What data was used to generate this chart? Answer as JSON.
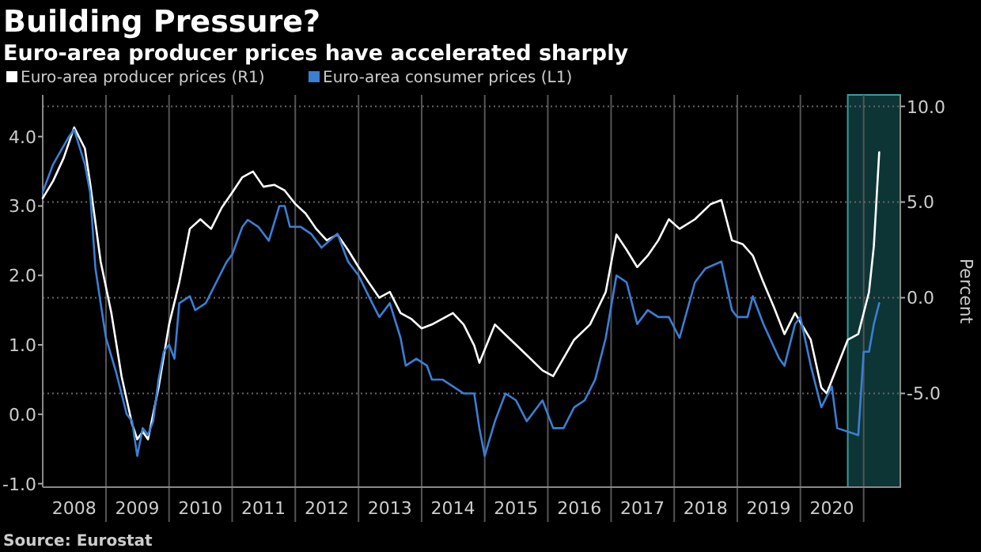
{
  "chart_data": {
    "type": "line",
    "title": "Building Pressure?",
    "subtitle": "Euro-area producer prices have accelerated sharply",
    "y2label": "Percent",
    "annotations": [
      "Source: Eurostat"
    ],
    "legend": "top left",
    "grid": true,
    "xlim": [
      "2008-01",
      "2021-08"
    ],
    "xticks": [
      {
        "value": "2008-07",
        "label": "2008"
      },
      {
        "value": "2009-07",
        "label": "2009"
      },
      {
        "value": "2010-07",
        "label": "2010"
      },
      {
        "value": "2011-07",
        "label": "2011"
      },
      {
        "value": "2012-07",
        "label": "2012"
      },
      {
        "value": "2013-07",
        "label": "2013"
      },
      {
        "value": "2014-07",
        "label": "2014"
      },
      {
        "value": "2015-07",
        "label": "2015"
      },
      {
        "value": "2016-07",
        "label": "2016"
      },
      {
        "value": "2017-07",
        "label": "2017"
      },
      {
        "value": "2018-07",
        "label": "2018"
      },
      {
        "value": "2019-07",
        "label": "2019"
      },
      {
        "value": "2020-07",
        "label": "2020"
      },
      {
        "value": "2009-01",
        "label": null
      },
      {
        "value": "2010-01",
        "label": null
      },
      {
        "value": "2011-01",
        "label": null
      },
      {
        "value": "2012-01",
        "label": null
      },
      {
        "value": "2013-01",
        "label": null
      },
      {
        "value": "2014-01",
        "label": null
      },
      {
        "value": "2015-01",
        "label": null
      },
      {
        "value": "2016-01",
        "label": null
      },
      {
        "value": "2017-01",
        "label": null
      },
      {
        "value": "2018-01",
        "label": null
      },
      {
        "value": "2019-01",
        "label": null
      },
      {
        "value": "2020-01",
        "label": null
      },
      {
        "value": "2021-01",
        "label": null
      }
    ],
    "ylim": [
      -1.05,
      4.6
    ],
    "yticks": [
      {
        "value": -1,
        "label": "-1.0"
      },
      {
        "value": 0,
        "label": "0.0"
      },
      {
        "value": 1,
        "label": "1.0"
      },
      {
        "value": 2,
        "label": "2.0"
      },
      {
        "value": 3,
        "label": "3.0"
      },
      {
        "value": 4,
        "label": "4.0"
      }
    ],
    "y2lim": [
      -9.9,
      10.6
    ],
    "y2ticks": [
      {
        "value": -5,
        "label": "-5.0"
      },
      {
        "value": 0,
        "label": "0.0"
      },
      {
        "value": 5,
        "label": "5.0"
      },
      {
        "value": 10,
        "label": "10.0"
      }
    ],
    "bands": [
      {
        "axis": "x",
        "from": "2020-10",
        "to": "2021-08",
        "color": "#0e3536"
      }
    ],
    "series": [
      {
        "name": "Euro-area producer prices (R1)",
        "color": "#ffffff",
        "axis": "y2",
        "x": [
          "2008-01",
          "2008-03",
          "2008-05",
          "2008-07",
          "2008-09",
          "2008-10",
          "2008-12",
          "2009-02",
          "2009-04",
          "2009-06",
          "2009-07",
          "2009-08",
          "2009-09",
          "2009-11",
          "2010-01",
          "2010-03",
          "2010-05",
          "2010-07",
          "2010-09",
          "2010-11",
          "2011-01",
          "2011-03",
          "2011-05",
          "2011-07",
          "2011-09",
          "2011-11",
          "2012-01",
          "2012-03",
          "2012-05",
          "2012-07",
          "2012-09",
          "2012-11",
          "2013-01",
          "2013-03",
          "2013-05",
          "2013-07",
          "2013-09",
          "2013-11",
          "2014-01",
          "2014-03",
          "2014-05",
          "2014-07",
          "2014-09",
          "2014-11",
          "2014-12",
          "2015-03",
          "2015-06",
          "2015-09",
          "2015-12",
          "2016-02",
          "2016-06",
          "2016-09",
          "2016-12",
          "2017-02",
          "2017-04",
          "2017-06",
          "2017-08",
          "2017-10",
          "2017-12",
          "2018-02",
          "2018-05",
          "2018-08",
          "2018-10",
          "2018-12",
          "2019-02",
          "2019-04",
          "2019-06",
          "2019-08",
          "2019-10",
          "2019-12",
          "2020-03",
          "2020-05",
          "2020-06",
          "2020-08",
          "2020-10",
          "2020-12",
          "2021-02",
          "2021-03",
          "2021-04"
        ],
        "values": [
          5.2,
          6.1,
          7.3,
          8.9,
          7.8,
          6.0,
          1.9,
          -0.8,
          -4.1,
          -6.6,
          -7.4,
          -7.0,
          -7.4,
          -4.7,
          -1.4,
          0.8,
          3.6,
          4.1,
          3.6,
          4.7,
          5.5,
          6.3,
          6.6,
          5.8,
          5.9,
          5.6,
          4.9,
          4.4,
          3.6,
          3.0,
          3.3,
          2.5,
          1.6,
          0.8,
          0.0,
          0.3,
          -0.8,
          -1.1,
          -1.6,
          -1.4,
          -1.1,
          -0.8,
          -1.4,
          -2.5,
          -3.4,
          -1.4,
          -2.2,
          -3.0,
          -3.8,
          -4.1,
          -2.2,
          -1.4,
          0.3,
          3.3,
          2.5,
          1.6,
          2.2,
          3.0,
          4.1,
          3.6,
          4.1,
          4.9,
          5.1,
          3.0,
          2.8,
          2.2,
          0.8,
          -0.5,
          -1.9,
          -0.8,
          -2.2,
          -4.7,
          -5.0,
          -3.6,
          -2.2,
          -1.9,
          0.3,
          2.7,
          7.6
        ]
      },
      {
        "name": "Euro-area consumer prices (L1)",
        "color": "#3a7fd5",
        "x": [
          "2008-01",
          "2008-03",
          "2008-06",
          "2008-07",
          "2008-09",
          "2008-10",
          "2008-11",
          "2008-12",
          "2009-01",
          "2009-03",
          "2009-05",
          "2009-06",
          "2009-07",
          "2009-08",
          "2009-09",
          "2009-10",
          "2009-11",
          "2009-12",
          "2010-01",
          "2010-02",
          "2010-03",
          "2010-05",
          "2010-06",
          "2010-08",
          "2010-10",
          "2010-12",
          "2011-01",
          "2011-03",
          "2011-04",
          "2011-06",
          "2011-08",
          "2011-10",
          "2011-11",
          "2011-12",
          "2012-02",
          "2012-04",
          "2012-06",
          "2012-09",
          "2012-11",
          "2013-01",
          "2013-03",
          "2013-05",
          "2013-07",
          "2013-09",
          "2013-10",
          "2013-12",
          "2014-02",
          "2014-03",
          "2014-05",
          "2014-07",
          "2014-09",
          "2014-11",
          "2014-12",
          "2015-01",
          "2015-03",
          "2015-05",
          "2015-07",
          "2015-09",
          "2015-11",
          "2015-12",
          "2016-02",
          "2016-04",
          "2016-06",
          "2016-08",
          "2016-10",
          "2016-12",
          "2017-02",
          "2017-04",
          "2017-06",
          "2017-08",
          "2017-10",
          "2017-12",
          "2018-02",
          "2018-05",
          "2018-07",
          "2018-10",
          "2018-12",
          "2019-01",
          "2019-03",
          "2019-04",
          "2019-06",
          "2019-09",
          "2019-10",
          "2019-12",
          "2020-01",
          "2020-03",
          "2020-05",
          "2020-07",
          "2020-08",
          "2020-12",
          "2021-01",
          "2021-02",
          "2021-03",
          "2021-04"
        ],
        "values": [
          3.2,
          3.6,
          4.0,
          4.1,
          3.6,
          3.2,
          2.1,
          1.6,
          1.1,
          0.6,
          0.0,
          -0.1,
          -0.6,
          -0.2,
          -0.3,
          -0.1,
          0.5,
          0.9,
          1.0,
          0.8,
          1.6,
          1.7,
          1.5,
          1.6,
          1.9,
          2.2,
          2.3,
          2.7,
          2.8,
          2.7,
          2.5,
          3.0,
          3.0,
          2.7,
          2.7,
          2.6,
          2.4,
          2.6,
          2.2,
          2.0,
          1.7,
          1.4,
          1.6,
          1.1,
          0.7,
          0.8,
          0.7,
          0.5,
          0.5,
          0.4,
          0.3,
          0.3,
          -0.2,
          -0.6,
          -0.1,
          0.3,
          0.2,
          -0.1,
          0.1,
          0.2,
          -0.2,
          -0.2,
          0.1,
          0.2,
          0.5,
          1.1,
          2.0,
          1.9,
          1.3,
          1.5,
          1.4,
          1.4,
          1.1,
          1.9,
          2.1,
          2.2,
          1.5,
          1.4,
          1.4,
          1.7,
          1.3,
          0.8,
          0.7,
          1.3,
          1.4,
          0.7,
          0.1,
          0.4,
          -0.2,
          -0.3,
          0.9,
          0.9,
          1.3,
          1.6
        ]
      }
    ]
  }
}
